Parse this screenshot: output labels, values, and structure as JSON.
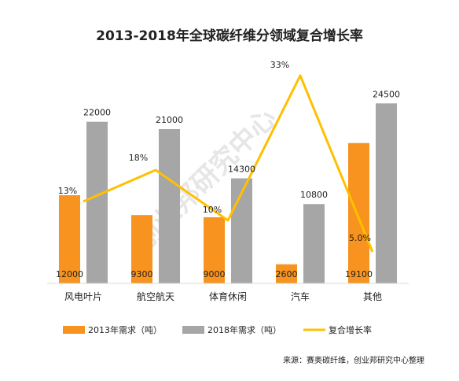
{
  "watermark": "创业邦研究中心",
  "source": "来源：赛奥碳纤维，创业邦研究中心整理",
  "chart_data": {
    "type": "bar",
    "title": "2013-2018年全球碳纤维分领域复合增长率",
    "categories": [
      "风电叶片",
      "航空航天",
      "体育休闲",
      "汽车",
      "其他"
    ],
    "series": [
      {
        "name": "2013年需求（吨）",
        "type": "bar",
        "axis": "left",
        "color": "#F7931E",
        "values": [
          12000,
          9300,
          9000,
          2600,
          19100
        ]
      },
      {
        "name": "2018年需求（吨）",
        "type": "bar",
        "axis": "left",
        "color": "#A6A6A6",
        "values": [
          22000,
          21000,
          14300,
          10800,
          24500
        ]
      },
      {
        "name": "复合增长率",
        "type": "line",
        "axis": "right",
        "color": "#FFC000",
        "values": [
          13,
          18,
          10,
          33,
          5.0
        ],
        "labels": [
          "13%",
          "18%",
          "10%",
          "33%",
          "5.0%"
        ]
      }
    ],
    "bar_labels": [
      [
        "12000",
        "9300",
        "9000",
        "2600",
        "19100"
      ],
      [
        "22000",
        "21000",
        "14300",
        "10800",
        "24500"
      ]
    ],
    "ylim": [
      0,
      30000
    ],
    "ylim_right": [
      0,
      35
    ],
    "grid": false,
    "legend": "bottom"
  }
}
